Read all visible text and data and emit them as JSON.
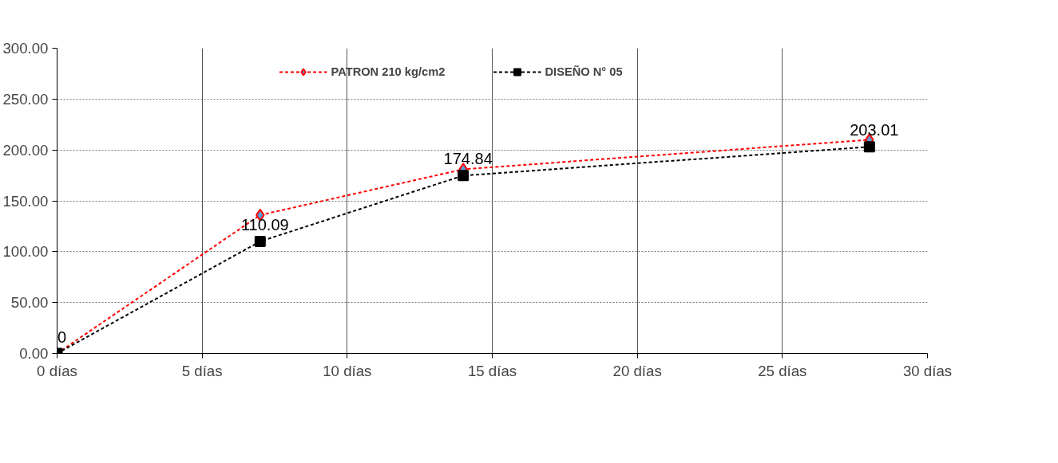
{
  "chart_data": {
    "type": "line",
    "x": [
      0,
      7,
      14,
      28
    ],
    "series": [
      {
        "name": "PATRON 210 kg/cm2",
        "color": "#ff0000",
        "values": [
          0,
          136,
          181,
          210
        ],
        "marker": "diamond"
      },
      {
        "name": "DISEÑO N° 05",
        "color": "#000000",
        "values": [
          0,
          110.09,
          174.84,
          203.01
        ],
        "marker": "square",
        "value_labels": [
          "0",
          "110.09",
          "174.84",
          "203.01"
        ]
      }
    ],
    "line_style": "dashed",
    "xlim": [
      0,
      30
    ],
    "xticks": [
      {
        "value": 0,
        "label": "0 días"
      },
      {
        "value": 5,
        "label": "5 días"
      },
      {
        "value": 10,
        "label": "10 días"
      },
      {
        "value": 15,
        "label": "15 días"
      },
      {
        "value": 20,
        "label": "20 días"
      },
      {
        "value": 25,
        "label": "25 días"
      },
      {
        "value": 30,
        "label": "30 días"
      }
    ],
    "ylim": [
      0,
      300
    ],
    "yticks": [
      {
        "value": 0,
        "label": "0.00"
      },
      {
        "value": 50,
        "label": "50.00"
      },
      {
        "value": 100,
        "label": "100.00"
      },
      {
        "value": 150,
        "label": "150.00"
      },
      {
        "value": 200,
        "label": "200.00"
      },
      {
        "value": 250,
        "label": "250.00"
      },
      {
        "value": 300,
        "label": "300.00"
      }
    ],
    "grid": true,
    "legend": "top"
  }
}
